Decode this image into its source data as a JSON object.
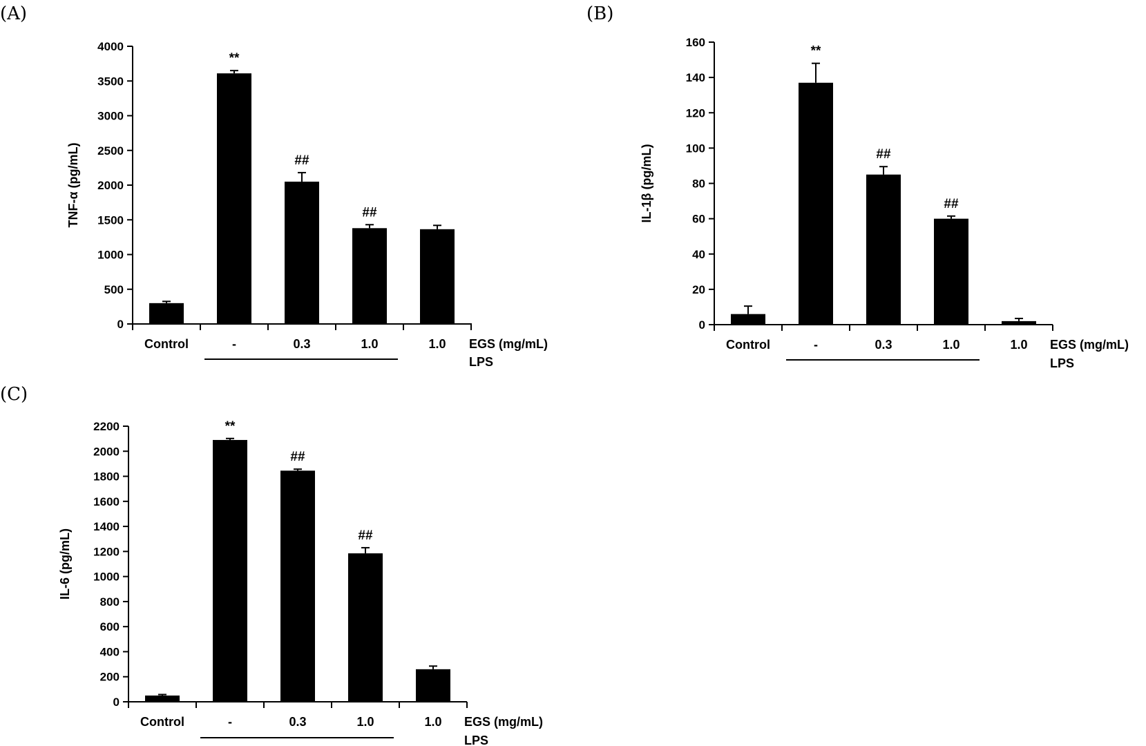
{
  "chart_data": [
    {
      "panel_label": "(A)",
      "type": "bar",
      "ylabel": "TNF-α (pg/mL)",
      "ylim": [
        0,
        4000
      ],
      "yticks": [
        0,
        500,
        1000,
        1500,
        2000,
        2500,
        3000,
        3500,
        4000
      ],
      "categories": [
        "Control",
        "-",
        "0.3",
        "1.0",
        "1.0"
      ],
      "values": [
        300,
        3610,
        2050,
        1380,
        1365
      ],
      "errors": [
        25,
        40,
        130,
        50,
        55
      ],
      "annotations": [
        "",
        "**",
        "##",
        "##",
        ""
      ],
      "x_title": "EGS (mg/mL)",
      "group_label": "LPS"
    },
    {
      "panel_label": "(B)",
      "type": "bar",
      "ylabel": "IL-1β (pg/mL)",
      "ylim": [
        0,
        160
      ],
      "yticks": [
        0,
        20,
        40,
        60,
        80,
        100,
        120,
        140,
        160
      ],
      "categories": [
        "Control",
        "-",
        "0.3",
        "1.0",
        "1.0"
      ],
      "values": [
        6,
        137,
        85,
        60,
        2
      ],
      "errors": [
        4.5,
        11,
        4.5,
        1.5,
        1.5
      ],
      "annotations": [
        "",
        "**",
        "##",
        "##",
        ""
      ],
      "x_title": "EGS (mg/mL)",
      "group_label": "LPS"
    },
    {
      "panel_label": "(C)",
      "type": "bar",
      "ylabel": "IL-6 (pg/mL)",
      "ylim": [
        0,
        2200
      ],
      "yticks": [
        0,
        200,
        400,
        600,
        800,
        1000,
        1200,
        1400,
        1600,
        1800,
        2000,
        2200
      ],
      "categories": [
        "Control",
        "-",
        "0.3",
        "1.0",
        "1.0"
      ],
      "values": [
        50,
        2090,
        1845,
        1185,
        260
      ],
      "errors": [
        8,
        12,
        12,
        45,
        25
      ],
      "annotations": [
        "",
        "**",
        "##",
        "##",
        ""
      ],
      "x_title": "EGS (mg/mL)",
      "group_label": "LPS"
    }
  ]
}
